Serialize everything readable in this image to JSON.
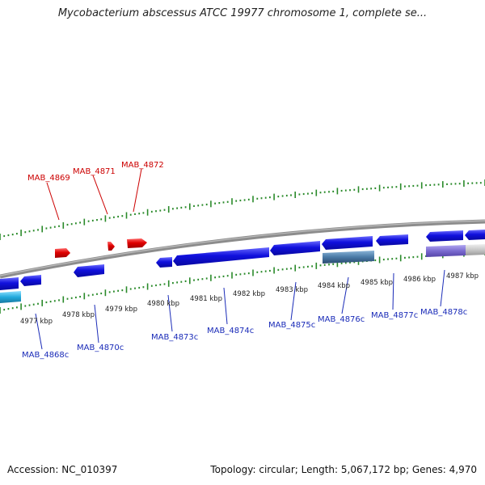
{
  "title": "Mycobacterium abscessus ATCC 19977 chromosome 1, complete se...",
  "footer": {
    "accession": "Accession: NC_010397",
    "topology": "Topology: circular; Length: 5,067,172 bp; Genes: 4,970"
  },
  "colors": {
    "forward_gene": "#dd0000",
    "reverse_gene": "#1010dd",
    "cyan_gene": "#22aadd",
    "steel_gene": "#4a7aa6",
    "purple_gene": "#7a6ad0",
    "backbone": "#888888",
    "tick": "#2a8a2a",
    "label_red": "#cc0000",
    "label_blue": "#1a2bb8"
  },
  "kbp_labels": [
    "4977 kbp",
    "4978 kbp",
    "4979 kbp",
    "4980 kbp",
    "4981 kbp",
    "4982 kbp",
    "4983 kbp",
    "4984 kbp",
    "4985 kbp",
    "4986 kbp",
    "4987 kbp"
  ],
  "forward_labels": [
    "MAB_4869",
    "MAB_4871",
    "MAB_4872"
  ],
  "reverse_labels": [
    "MAB_4868c",
    "MAB_4870c",
    "MAB_4873c",
    "MAB_4874c",
    "MAB_4875c",
    "MAB_4876c",
    "MAB_4877c",
    "MAB_4878c"
  ]
}
